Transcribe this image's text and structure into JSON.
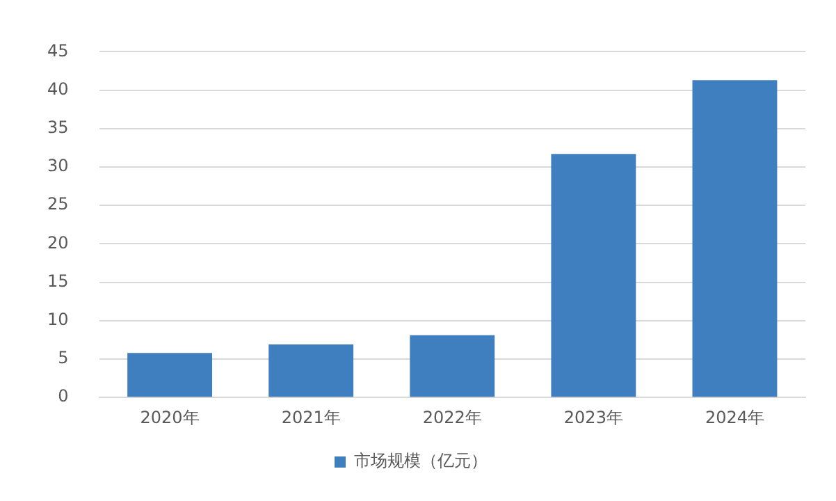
{
  "chart_data": {
    "type": "bar",
    "categories": [
      "2020年",
      "2021年",
      "2022年",
      "2023年",
      "2024年"
    ],
    "series": [
      {
        "name": "市场规模（亿元）",
        "color": "#3f7fc0",
        "values": [
          5.8,
          6.9,
          8.1,
          31.7,
          41.3
        ]
      }
    ],
    "ylim": [
      0,
      45
    ],
    "yticks": [
      0,
      5,
      10,
      15,
      20,
      25,
      30,
      35,
      40,
      45
    ],
    "grid": "y",
    "legend": "bottom"
  }
}
